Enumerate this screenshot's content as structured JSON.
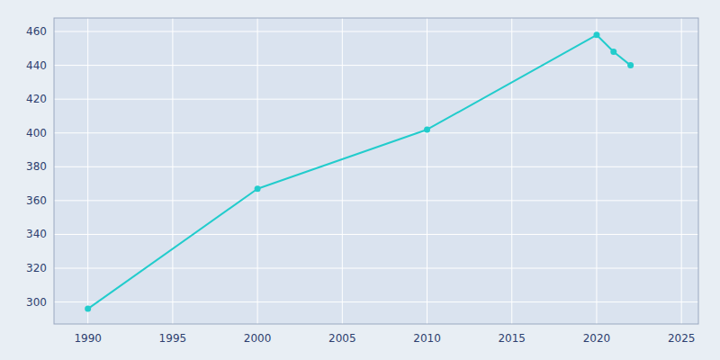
{
  "chart_data": {
    "type": "line",
    "x": [
      1990,
      2000,
      2010,
      2020,
      2021,
      2022
    ],
    "values": [
      296,
      367,
      402,
      458,
      448,
      440
    ],
    "color": "#22CCCC",
    "marker": "circle",
    "xlim": [
      1988,
      2026
    ],
    "ylim": [
      287,
      468
    ],
    "xticks": [
      1990,
      1995,
      2000,
      2005,
      2010,
      2015,
      2020,
      2025
    ],
    "yticks": [
      300,
      320,
      340,
      360,
      380,
      400,
      420,
      440,
      460
    ],
    "grid": true
  }
}
